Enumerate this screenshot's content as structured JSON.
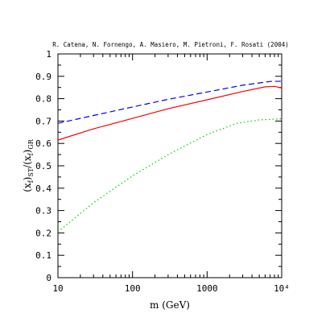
{
  "chart_data": {
    "type": "line",
    "title": "",
    "annotation": "R. Catena, N. Fornengo, A. Masiero, M. Pietroni, F. Rosati (2004)",
    "xlabel_text": "m (GeV)",
    "ylabel_parts": {
      "base": "(x",
      "sub1": "f",
      "mid1": ")",
      "sub2": "ST",
      "mid2": "/(x",
      "sub3": "f",
      "mid3": ")",
      "sub4": "GR"
    },
    "x_scale": "log",
    "xlim": [
      10,
      10000
    ],
    "ylim": [
      0,
      1
    ],
    "x_ticks": [
      {
        "value": 10,
        "label": "10"
      },
      {
        "value": 100,
        "label": "100"
      },
      {
        "value": 1000,
        "label": "1000"
      },
      {
        "value": 10000,
        "label": "10⁴"
      }
    ],
    "y_ticks": [
      {
        "value": 0,
        "label": "0"
      },
      {
        "value": 0.1,
        "label": "0.1"
      },
      {
        "value": 0.2,
        "label": "0.2"
      },
      {
        "value": 0.3,
        "label": "0.3"
      },
      {
        "value": 0.4,
        "label": "0.4"
      },
      {
        "value": 0.5,
        "label": "0.5"
      },
      {
        "value": 0.6,
        "label": "0.6"
      },
      {
        "value": 0.7,
        "label": "0.7"
      },
      {
        "value": 0.8,
        "label": "0.8"
      },
      {
        "value": 0.9,
        "label": "0.9"
      },
      {
        "value": 1,
        "label": "1"
      }
    ],
    "grid": false,
    "series": [
      {
        "style": "dashed",
        "color": "#0000ff",
        "x": [
          10,
          30,
          100,
          300,
          1000,
          3000,
          7000,
          10000
        ],
        "y": [
          0.69,
          0.725,
          0.763,
          0.797,
          0.83,
          0.86,
          0.877,
          0.878
        ]
      },
      {
        "style": "solid",
        "color": "#ff0000",
        "x": [
          10,
          30,
          100,
          300,
          1000,
          3000,
          6000,
          8000,
          10000
        ],
        "y": [
          0.615,
          0.665,
          0.712,
          0.755,
          0.795,
          0.832,
          0.853,
          0.855,
          0.848
        ]
      },
      {
        "style": "dotted",
        "color": "#00cc00",
        "x": [
          10,
          30,
          100,
          300,
          1000,
          2500,
          5000,
          10000
        ],
        "y": [
          0.205,
          0.335,
          0.455,
          0.55,
          0.64,
          0.69,
          0.705,
          0.71
        ]
      }
    ]
  }
}
